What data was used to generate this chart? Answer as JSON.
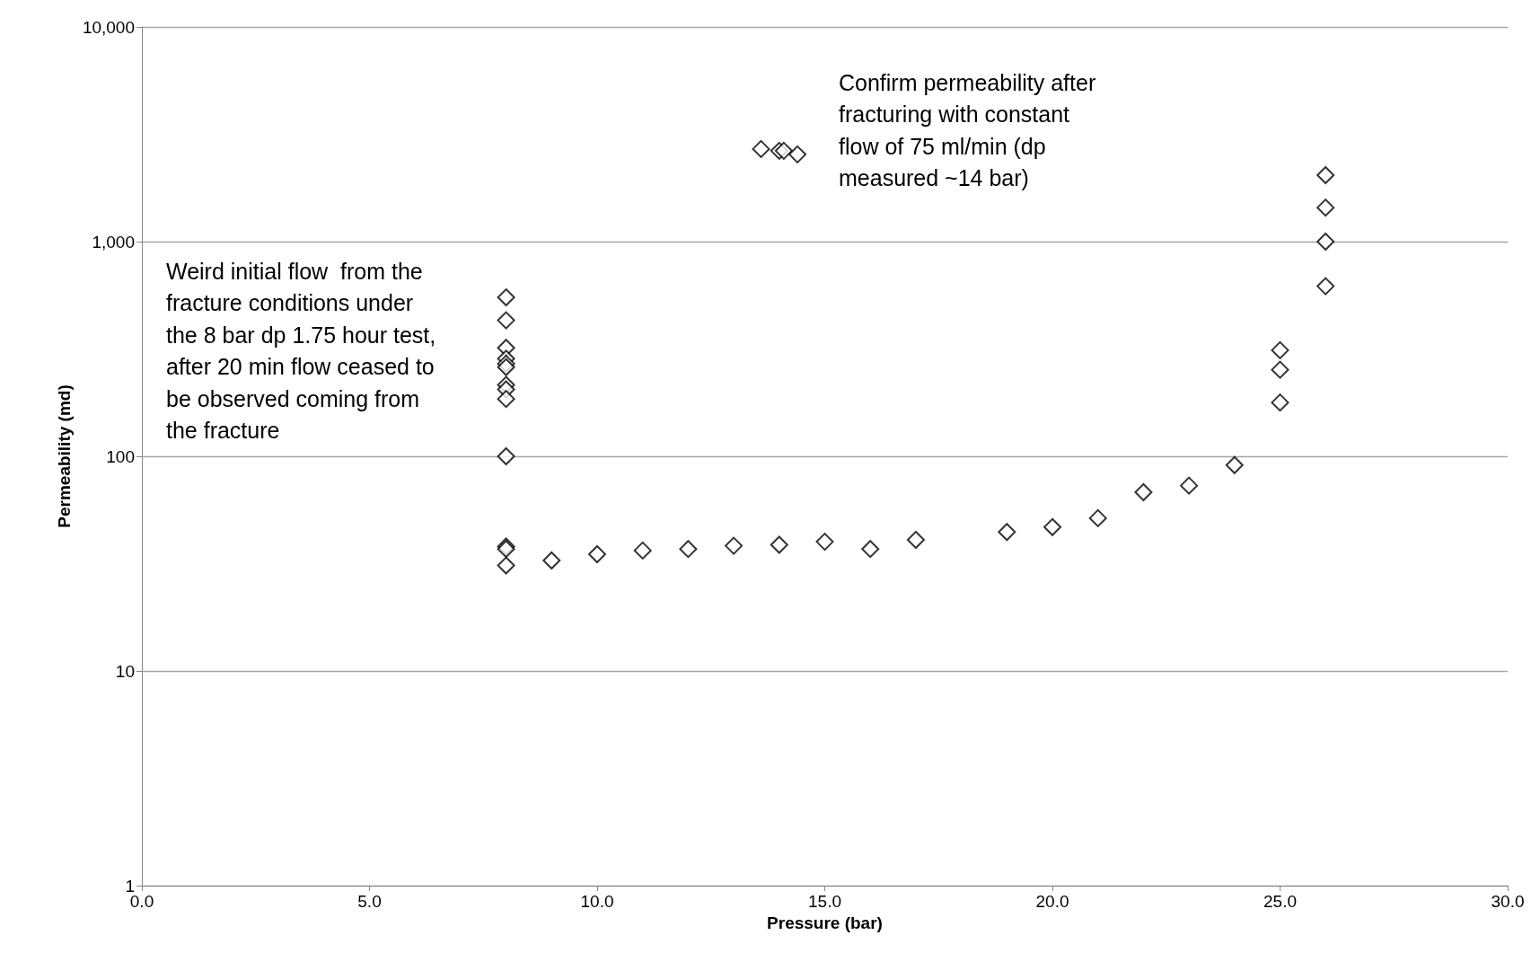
{
  "chart_data": {
    "type": "scatter",
    "xlabel": "Pressure (bar)",
    "ylabel": "Permeability (md)",
    "x": [
      8,
      8,
      8,
      8,
      8,
      8,
      8,
      8,
      8,
      8,
      8,
      8,
      8,
      9,
      10,
      11,
      12,
      13,
      14,
      15,
      16,
      17,
      19,
      20,
      21,
      22,
      23,
      24,
      25,
      25,
      25,
      26,
      26,
      26,
      26,
      13.6,
      14,
      14.1,
      14.4
    ],
    "values": [
      550,
      430,
      320,
      285,
      270,
      260,
      215,
      205,
      185,
      100,
      38,
      37,
      31,
      32.7,
      35,
      36.4,
      37,
      38.3,
      38.7,
      40,
      37,
      40.8,
      44.4,
      46.8,
      51.5,
      68,
      73,
      91,
      178,
      253,
      312,
      620,
      1000,
      1440,
      2040,
      2700,
      2650,
      2650,
      2550
    ],
    "color": "#000000",
    "marker": "diamond",
    "log": "y",
    "grid": "y",
    "xlim": [
      0,
      30
    ],
    "xticks": [
      {
        "value": 0,
        "label": "0.0"
      },
      {
        "value": 5,
        "label": "5.0"
      },
      {
        "value": 10,
        "label": "10.0"
      },
      {
        "value": 15,
        "label": "15.0"
      },
      {
        "value": 20,
        "label": "20.0"
      },
      {
        "value": 25,
        "label": "25.0"
      },
      {
        "value": 30,
        "label": "30.0"
      }
    ],
    "ylim": [
      1,
      10000
    ],
    "yticks": [
      1,
      10,
      100,
      {
        "value": 1000,
        "label": "1,000"
      },
      {
        "value": 10000,
        "label": "10,000"
      }
    ],
    "annotations": [
      "Weird initial flow  from the\nfracture conditions under\nthe 8 bar dp 1.75 hour test,\nafter 20 min flow ceased to\nbe observed coming from\nthe fracture",
      "Confirm permeability after\nfracturing with constant\nflow of 75 ml/min (dp\nmeasured ~14 bar)"
    ]
  }
}
